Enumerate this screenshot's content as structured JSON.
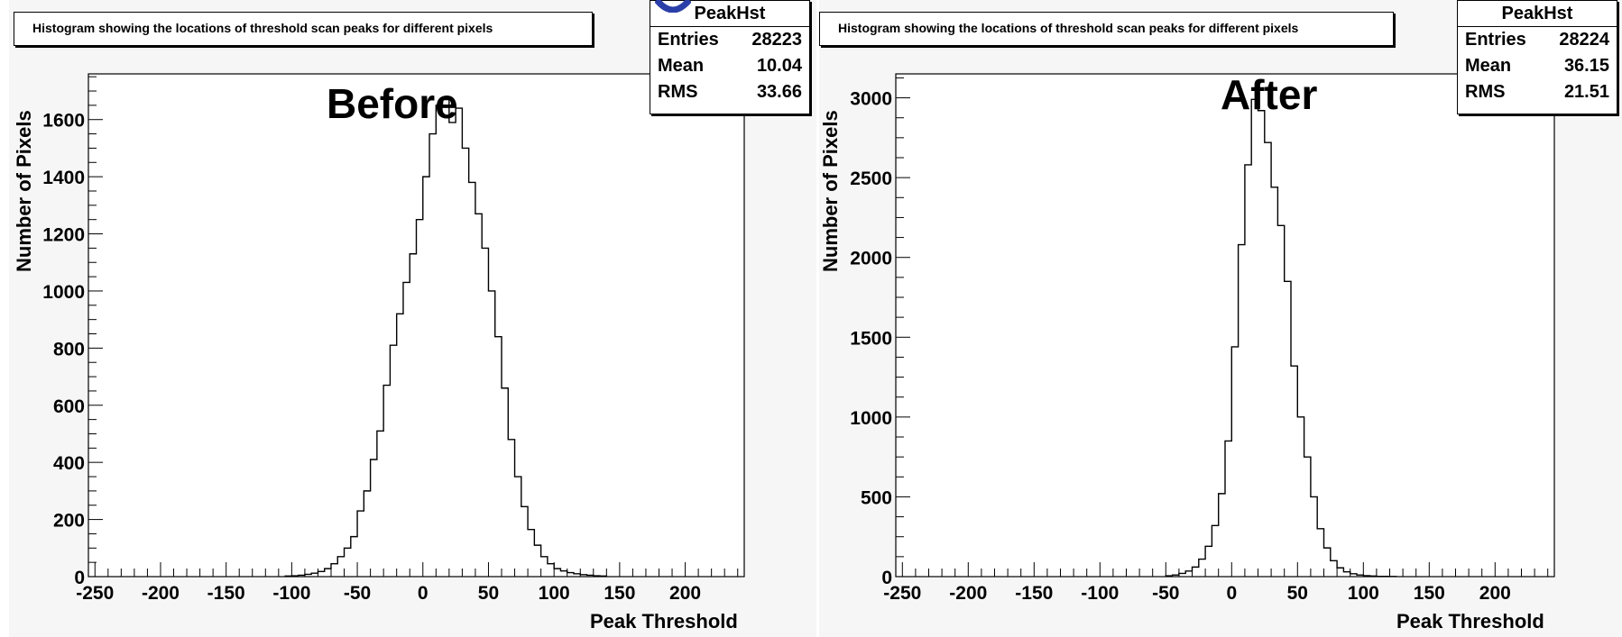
{
  "charts": {
    "before": {
      "title": "Histogram showing the locations of threshold scan peaks for different pixels",
      "big_label": "Before",
      "stats": {
        "name": "PeakHst",
        "rows": [
          {
            "label": "Entries",
            "value": "28223"
          },
          {
            "label": "Mean",
            "value": "10.04"
          },
          {
            "label": "RMS",
            "value": "33.66"
          }
        ]
      },
      "xlabel": "Peak Threshold",
      "ylabel": "Number of Pixels"
    },
    "after": {
      "title": "Histogram showing the locations of threshold scan peaks for different pixels",
      "big_label": "After",
      "stats": {
        "name": "PeakHst",
        "rows": [
          {
            "label": "Entries",
            "value": "28224"
          },
          {
            "label": "Mean",
            "value": "36.15"
          },
          {
            "label": "RMS",
            "value": "21.51"
          }
        ]
      },
      "xlabel": "Peak Threshold",
      "ylabel": "Number of Pixels"
    }
  },
  "colors": {
    "line": "#000000",
    "panel_bg": "#f6f6f6",
    "accent_arc": "#2a3fa8"
  },
  "chart_data": [
    {
      "type": "histogram",
      "title": "Histogram showing the locations of threshold scan peaks for different pixels",
      "xlabel": "Peak Threshold",
      "ylabel": "Number of Pixels",
      "xlim": [
        -255,
        245
      ],
      "ylim": [
        0,
        1760
      ],
      "bin_width": 5,
      "x_ticks": [
        -250,
        -200,
        -150,
        -100,
        -50,
        0,
        50,
        100,
        150,
        200
      ],
      "y_ticks": [
        0,
        200,
        400,
        600,
        800,
        1000,
        1200,
        1400,
        1600
      ],
      "bin_start": -105,
      "values": [
        2,
        3,
        5,
        8,
        12,
        18,
        28,
        45,
        70,
        100,
        140,
        230,
        300,
        410,
        510,
        670,
        810,
        920,
        1030,
        1130,
        1250,
        1400,
        1550,
        1650,
        1670,
        1590,
        1640,
        1500,
        1380,
        1270,
        1150,
        1000,
        840,
        660,
        480,
        350,
        245,
        165,
        110,
        70,
        45,
        28,
        20,
        14,
        10,
        7,
        5,
        3,
        2
      ],
      "stats": {
        "name": "PeakHst",
        "entries": 28223,
        "mean": 10.04,
        "rms": 33.66
      },
      "annotation": "Before"
    },
    {
      "type": "histogram",
      "title": "Histogram showing the locations of threshold scan peaks for different pixels",
      "xlabel": "Peak Threshold",
      "ylabel": "Number of Pixels",
      "xlim": [
        -255,
        245
      ],
      "ylim": [
        0,
        3150
      ],
      "bin_width": 5,
      "x_ticks": [
        -250,
        -200,
        -150,
        -100,
        -50,
        0,
        50,
        100,
        150,
        200
      ],
      "y_ticks": [
        0,
        500,
        1000,
        1500,
        2000,
        2500,
        3000
      ],
      "bin_start": -50,
      "values": [
        5,
        10,
        20,
        35,
        60,
        110,
        190,
        320,
        520,
        850,
        1440,
        2080,
        2580,
        2990,
        2920,
        2720,
        2440,
        2200,
        1850,
        1320,
        1000,
        750,
        500,
        300,
        180,
        100,
        55,
        30,
        18,
        10,
        6,
        4,
        2,
        2,
        1
      ],
      "stats": {
        "name": "PeakHst",
        "entries": 28224,
        "mean": 36.15,
        "rms": 21.51
      },
      "annotation": "After"
    }
  ]
}
